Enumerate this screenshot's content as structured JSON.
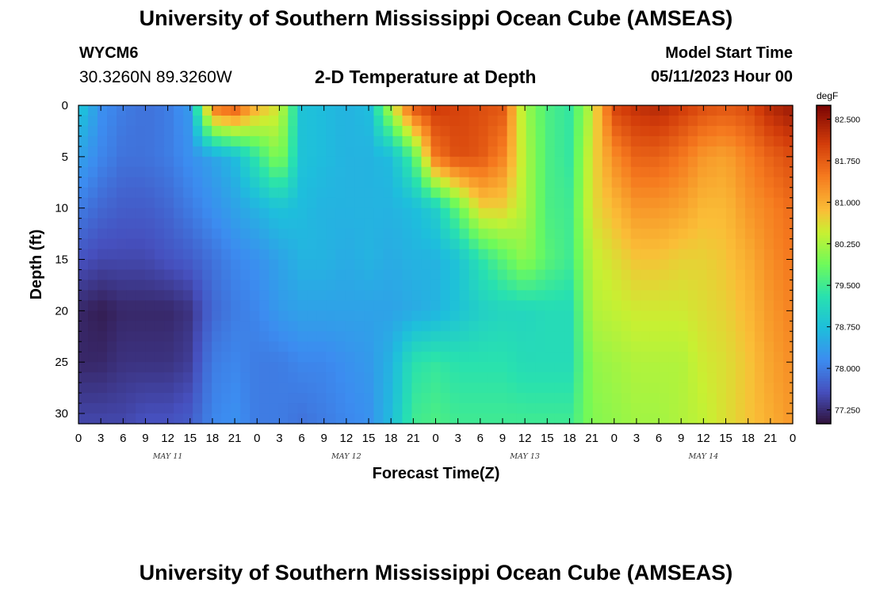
{
  "header": {
    "title": "University of Southern Mississippi Ocean Cube (AMSEAS)",
    "station": "WYCM6",
    "coords": "30.3260N  89.3260W",
    "plot_title": "2-D Temperature at Depth",
    "model_start_label": "Model Start Time",
    "model_start_value": "05/11/2023 Hour 00"
  },
  "footer": {
    "title": "University of Southern Mississippi Ocean Cube (AMSEAS)"
  },
  "chart_data": {
    "type": "heatmap",
    "title": "2-D Temperature at Depth",
    "xlabel": "Forecast Time(Z)",
    "ylabel": "Depth (ft)",
    "x_hours_range": [
      0,
      96
    ],
    "x_ticks": [
      "0",
      "3",
      "6",
      "9",
      "12",
      "15",
      "18",
      "21",
      "0",
      "3",
      "6",
      "9",
      "12",
      "15",
      "18",
      "21",
      "0",
      "3",
      "6",
      "9",
      "12",
      "15",
      "18",
      "21",
      "0",
      "3",
      "6",
      "9",
      "12",
      "15",
      "18",
      "21",
      "0"
    ],
    "day_labels": [
      "MAY 11",
      "MAY 12",
      "MAY 13",
      "MAY 14"
    ],
    "y_range": [
      0,
      31
    ],
    "y_ticks": [
      "0",
      "5",
      "10",
      "15",
      "20",
      "25",
      "30"
    ],
    "colorbar": {
      "unit": "degF",
      "range": [
        77.0,
        82.75
      ],
      "labels": [
        "82.500",
        "81.750",
        "81.000",
        "80.250",
        "79.500",
        "78.750",
        "78.000",
        "77.250"
      ]
    },
    "depths_ft": [
      0,
      5,
      10,
      15,
      20,
      25,
      31
    ],
    "time_hours": [
      0,
      3,
      6,
      9,
      12,
      15,
      18,
      21,
      24,
      27,
      30,
      33,
      36,
      39,
      42,
      45,
      48,
      51,
      54,
      57,
      60,
      63,
      66,
      69,
      72,
      75,
      78,
      81,
      84,
      87,
      90,
      93,
      96
    ],
    "temperature_degF": [
      [
        78.9,
        78.2,
        78.0,
        77.9,
        78.0,
        78.3,
        81.6,
        81.9,
        81.0,
        80.5,
        78.8,
        78.7,
        78.6,
        78.7,
        80.4,
        81.9,
        82.1,
        82.0,
        81.9,
        81.8,
        80.2,
        79.6,
        79.4,
        80.4,
        82.0,
        82.2,
        82.3,
        82.1,
        81.9,
        81.8,
        81.9,
        82.3,
        82.5
      ],
      [
        78.4,
        78.1,
        77.9,
        77.9,
        78.0,
        78.2,
        78.4,
        78.7,
        79.4,
        80.1,
        78.8,
        78.7,
        78.6,
        78.6,
        78.7,
        79.6,
        81.5,
        81.9,
        81.8,
        81.4,
        80.3,
        79.6,
        79.4,
        80.6,
        81.3,
        81.7,
        81.7,
        81.5,
        81.2,
        81.1,
        81.4,
        81.7,
        81.9
      ],
      [
        78.0,
        77.8,
        77.7,
        77.7,
        77.8,
        78.0,
        78.2,
        78.4,
        78.6,
        78.8,
        78.7,
        78.6,
        78.6,
        78.6,
        78.6,
        78.7,
        79.0,
        79.8,
        80.7,
        80.7,
        80.3,
        79.6,
        79.5,
        80.6,
        80.9,
        81.2,
        81.2,
        81.1,
        80.9,
        80.9,
        81.2,
        81.4,
        81.6
      ],
      [
        77.6,
        77.5,
        77.5,
        77.5,
        77.6,
        77.7,
        77.9,
        78.1,
        78.2,
        78.4,
        78.6,
        78.6,
        78.5,
        78.6,
        78.5,
        78.6,
        78.6,
        78.8,
        79.3,
        79.7,
        80.1,
        79.7,
        79.5,
        80.4,
        80.6,
        80.8,
        80.8,
        80.7,
        80.7,
        80.8,
        81.0,
        81.3,
        81.5
      ],
      [
        77.2,
        77.1,
        77.2,
        77.2,
        77.2,
        77.3,
        77.8,
        78.0,
        78.1,
        78.3,
        78.4,
        78.4,
        78.4,
        78.4,
        78.4,
        78.5,
        78.6,
        78.8,
        79.0,
        79.1,
        79.1,
        79.2,
        79.2,
        80.3,
        80.4,
        80.5,
        80.5,
        80.5,
        80.6,
        80.7,
        80.9,
        81.2,
        81.4
      ],
      [
        77.2,
        77.2,
        77.3,
        77.3,
        77.3,
        77.4,
        78.0,
        78.1,
        78.0,
        78.0,
        78.1,
        78.1,
        78.2,
        78.3,
        78.6,
        79.3,
        79.4,
        79.3,
        79.3,
        79.3,
        79.2,
        79.2,
        79.2,
        80.1,
        80.2,
        80.3,
        80.3,
        80.3,
        80.5,
        80.6,
        80.8,
        81.1,
        81.3
      ],
      [
        77.5,
        77.5,
        77.5,
        77.6,
        77.6,
        77.7,
        78.1,
        78.2,
        78.0,
        78.0,
        77.9,
        78.0,
        78.1,
        78.2,
        78.7,
        79.5,
        79.6,
        79.5,
        79.5,
        79.5,
        79.5,
        79.5,
        79.5,
        80.0,
        80.1,
        80.2,
        80.2,
        80.3,
        80.4,
        80.6,
        80.8,
        81.0,
        81.2
      ]
    ]
  }
}
